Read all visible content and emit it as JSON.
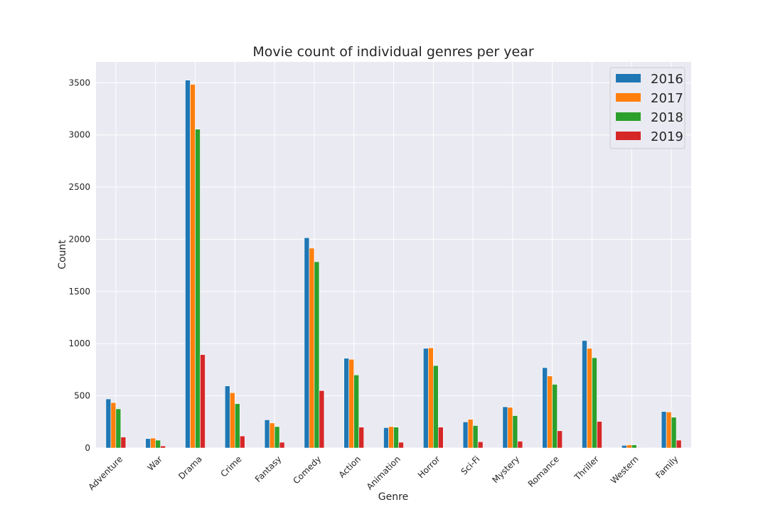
{
  "chart_data": {
    "type": "bar",
    "title": "Movie count of individual genres per year",
    "xlabel": "Genre",
    "ylabel": "Count",
    "ylim": [
      0,
      3700
    ],
    "yticks": [
      0,
      500,
      1000,
      1500,
      2000,
      2500,
      3000,
      3500
    ],
    "grid": true,
    "legend_position": "top-right",
    "categories": [
      "Adventure",
      "War",
      "Drama",
      "Crime",
      "Fantasy",
      "Comedy",
      "Action",
      "Animation",
      "Horror",
      "Sci-Fi",
      "Mystery",
      "Romance",
      "Thriller",
      "Western",
      "Family"
    ],
    "series": [
      {
        "name": "2016",
        "color": "#1f77b4",
        "values": [
          470,
          90,
          3525,
          595,
          270,
          2015,
          860,
          195,
          955,
          250,
          395,
          770,
          1030,
          25,
          350
        ]
      },
      {
        "name": "2017",
        "color": "#ff7f0e",
        "values": [
          435,
          95,
          3485,
          530,
          240,
          1915,
          850,
          205,
          960,
          275,
          390,
          690,
          955,
          30,
          345
        ]
      },
      {
        "name": "2018",
        "color": "#2ca02c",
        "values": [
          375,
          75,
          3055,
          425,
          205,
          1785,
          700,
          200,
          790,
          215,
          310,
          610,
          865,
          30,
          295
        ]
      },
      {
        "name": "2019",
        "color": "#d62728",
        "values": [
          105,
          20,
          895,
          115,
          55,
          550,
          200,
          55,
          200,
          60,
          65,
          165,
          255,
          5,
          75
        ]
      }
    ]
  }
}
